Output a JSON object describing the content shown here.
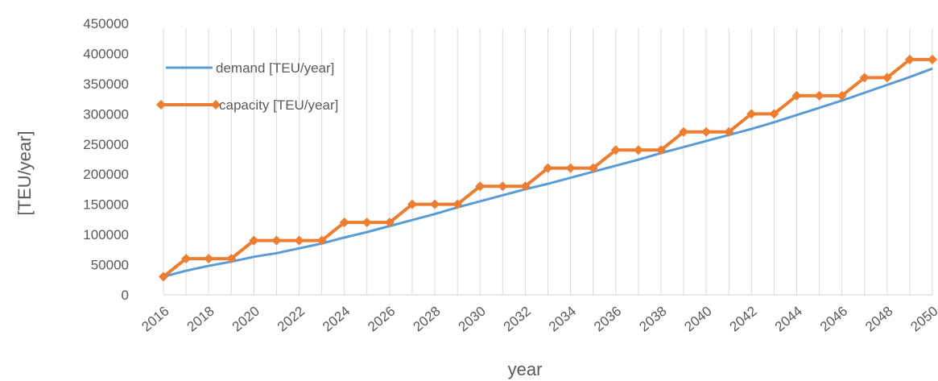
{
  "chart_data": {
    "type": "line",
    "title": "",
    "xlabel": "year",
    "ylabel": "[TEU/year]",
    "ylim": [
      0,
      450000
    ],
    "y_ticks": [
      "0",
      "50000",
      "100000",
      "150000",
      "200000",
      "250000",
      "300000",
      "350000",
      "400000",
      "450000"
    ],
    "x_tick_labels": [
      "2016",
      "2018",
      "2020",
      "2022",
      "2024",
      "2026",
      "2028",
      "2030",
      "2032",
      "2034",
      "2036",
      "2038",
      "2040",
      "2042",
      "2044",
      "2046",
      "2048",
      "2050"
    ],
    "x": [
      2016,
      2017,
      2018,
      2019,
      2020,
      2021,
      2022,
      2023,
      2024,
      2025,
      2026,
      2027,
      2028,
      2029,
      2030,
      2031,
      2032,
      2033,
      2034,
      2035,
      2036,
      2037,
      2038,
      2039,
      2040,
      2041,
      2042,
      2043,
      2044,
      2045,
      2046,
      2047,
      2048,
      2049,
      2050
    ],
    "grid": "vertical",
    "legend_position": "top-left",
    "series": [
      {
        "name": "demand [TEU/year]",
        "color": "#5b9bd5",
        "marker": "none",
        "values": [
          30000,
          40000,
          48000,
          55000,
          63000,
          69000,
          77000,
          85000,
          95000,
          104000,
          114000,
          124000,
          134000,
          145000,
          155000,
          165000,
          175000,
          184000,
          194000,
          204000,
          214000,
          224000,
          235000,
          245000,
          255000,
          265000,
          275000,
          286000,
          298000,
          310000,
          322000,
          335000,
          348000,
          361000,
          375000
        ]
      },
      {
        "name": "capacity [TEU/year]",
        "color": "#ed7d31",
        "marker": "diamond",
        "values": [
          30000,
          60000,
          60000,
          60000,
          90000,
          90000,
          90000,
          90000,
          120000,
          120000,
          120000,
          150000,
          150000,
          150000,
          180000,
          180000,
          180000,
          210000,
          210000,
          210000,
          240000,
          240000,
          240000,
          270000,
          270000,
          270000,
          300000,
          300000,
          330000,
          330000,
          330000,
          360000,
          360000,
          390000,
          390000
        ]
      }
    ]
  }
}
